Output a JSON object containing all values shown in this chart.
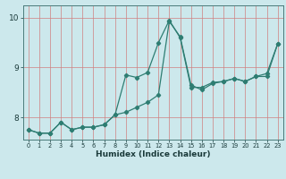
{
  "xlabel": "Humidex (Indice chaleur)",
  "bg_color": "#cce8ec",
  "grid_color": "#d08080",
  "line_color": "#2e7d72",
  "xlim": [
    -0.5,
    23.5
  ],
  "ylim": [
    7.55,
    10.25
  ],
  "yticks": [
    8,
    9,
    10
  ],
  "xticks": [
    0,
    1,
    2,
    3,
    4,
    5,
    6,
    7,
    8,
    9,
    10,
    11,
    12,
    13,
    14,
    15,
    16,
    17,
    18,
    19,
    20,
    21,
    22,
    23
  ],
  "line1_x": [
    0,
    1,
    2,
    3,
    4,
    5,
    6,
    7,
    8,
    9,
    10,
    11,
    12,
    13,
    14,
    15,
    16,
    17,
    18,
    19,
    20,
    21,
    22,
    23
  ],
  "line1_y": [
    7.75,
    7.68,
    7.68,
    7.9,
    7.75,
    7.8,
    7.8,
    7.85,
    8.05,
    8.85,
    8.8,
    8.9,
    9.5,
    9.95,
    9.6,
    8.6,
    8.6,
    8.7,
    8.72,
    8.78,
    8.72,
    8.82,
    8.82,
    9.48
  ],
  "line2_x": [
    0,
    1,
    2,
    3,
    4,
    5,
    6,
    7,
    8,
    9,
    10,
    11,
    12,
    13,
    14,
    15,
    16,
    17,
    18,
    19,
    20,
    21,
    22,
    23
  ],
  "line2_y": [
    7.75,
    7.68,
    7.68,
    7.9,
    7.75,
    7.8,
    7.8,
    7.85,
    8.05,
    8.1,
    8.2,
    8.3,
    8.45,
    9.93,
    9.62,
    8.65,
    8.55,
    8.68,
    8.72,
    8.78,
    8.72,
    8.82,
    8.88,
    9.48
  ]
}
